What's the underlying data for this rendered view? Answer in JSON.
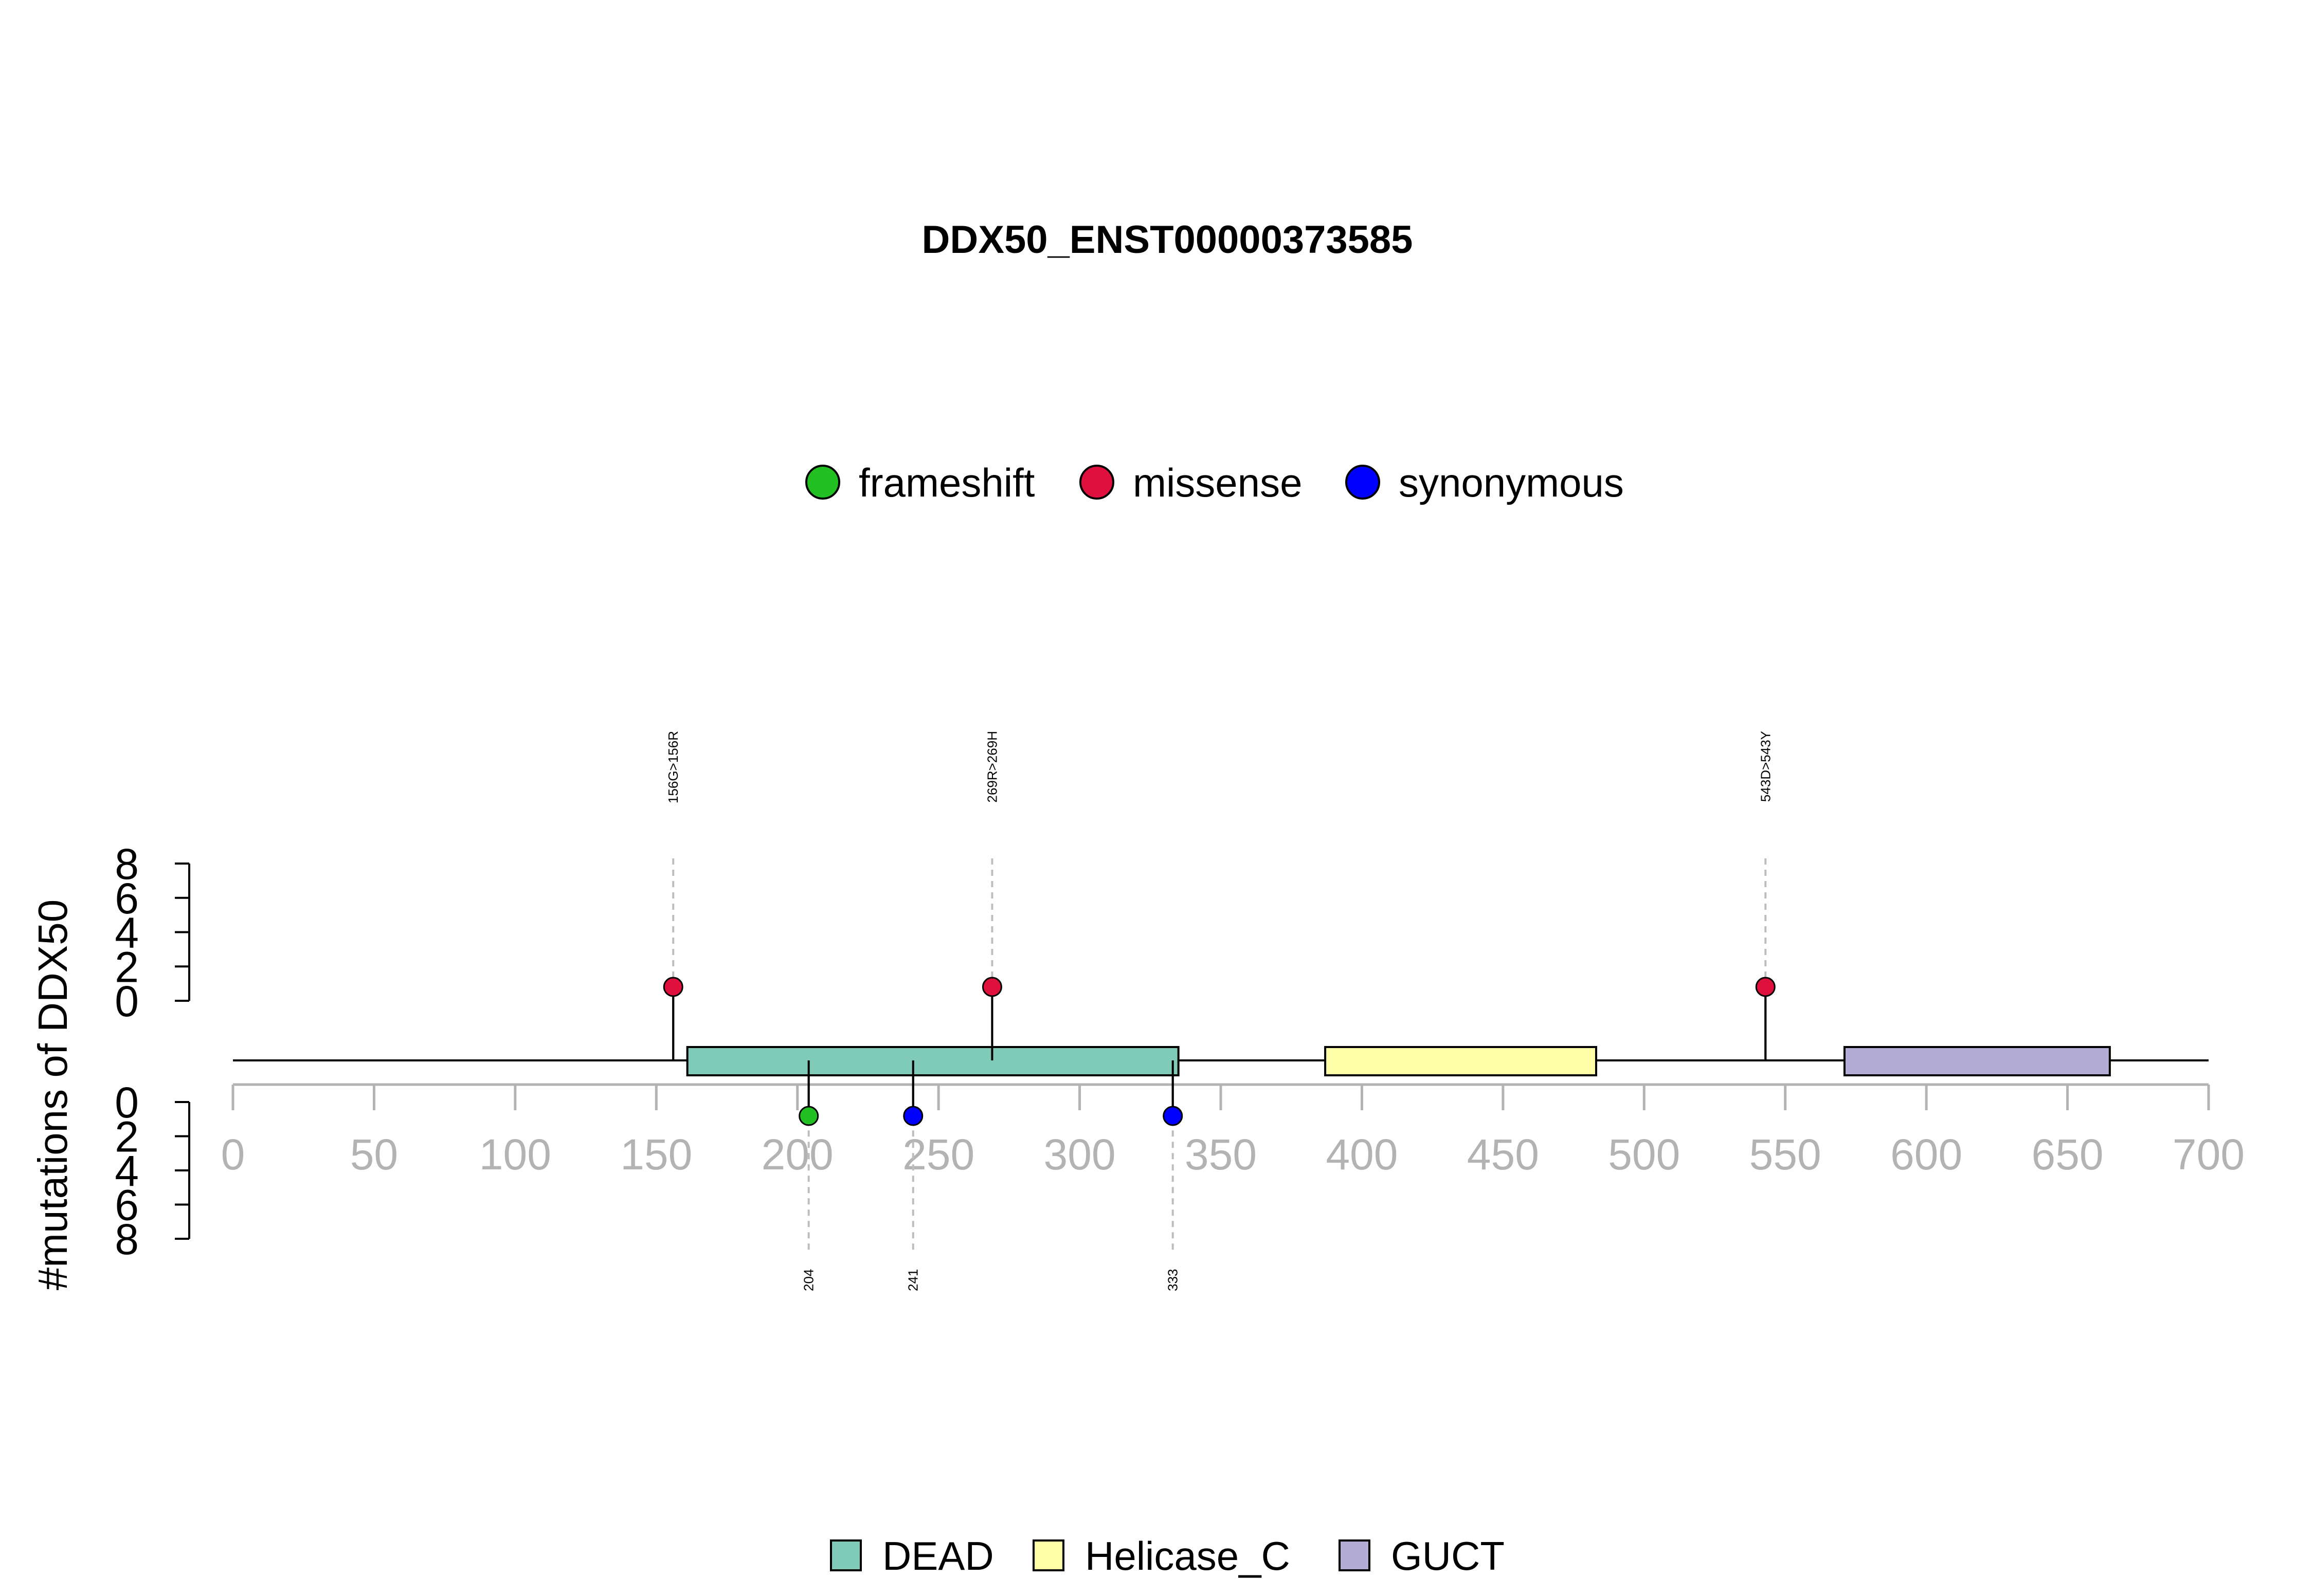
{
  "chart_data": {
    "type": "lollipop",
    "title": "DDX50_ENST00000373585",
    "ylabel": "#mutations of DDX50",
    "xlim": [
      0,
      700
    ],
    "x_ticks": [
      0,
      50,
      100,
      150,
      200,
      250,
      300,
      350,
      400,
      450,
      500,
      550,
      600,
      650,
      700
    ],
    "y_ticks_top": [
      0,
      2,
      4,
      6,
      8
    ],
    "y_ticks_bottom": [
      0,
      2,
      4,
      6,
      8
    ],
    "ylim": [
      0,
      8
    ],
    "grid": false,
    "mutation_legend": [
      {
        "name": "frameshift",
        "color": "#22c022"
      },
      {
        "name": "missense",
        "color": "#e0103e"
      },
      {
        "name": "synonymous",
        "color": "#0000ff"
      }
    ],
    "domain_legend": [
      {
        "name": "DEAD",
        "color": "#7fcbb8"
      },
      {
        "name": "Helicase_C",
        "color": "#ffffa8"
      },
      {
        "name": "GUCT",
        "color": "#b3acd4"
      }
    ],
    "domains": [
      {
        "name": "DEAD",
        "start": 161,
        "end": 335,
        "color": "#7fcbb8"
      },
      {
        "name": "Helicase_C",
        "start": 387,
        "end": 483,
        "color": "#ffffa8"
      },
      {
        "name": "GUCT",
        "start": 571,
        "end": 665,
        "color": "#b3acd4"
      }
    ],
    "mutations_top": [
      {
        "position": 156,
        "count": 1,
        "type": "missense",
        "label": "156G>156R"
      },
      {
        "position": 269,
        "count": 1,
        "type": "missense",
        "label": "269R>269H"
      },
      {
        "position": 543,
        "count": 1,
        "type": "missense",
        "label": "543D>543Y"
      }
    ],
    "mutations_bottom": [
      {
        "position": 204,
        "count": 1,
        "type": "frameshift",
        "label": "204"
      },
      {
        "position": 241,
        "count": 1,
        "type": "synonymous",
        "label": "241"
      },
      {
        "position": 333,
        "count": 1,
        "type": "synonymous",
        "label": "333"
      }
    ]
  }
}
